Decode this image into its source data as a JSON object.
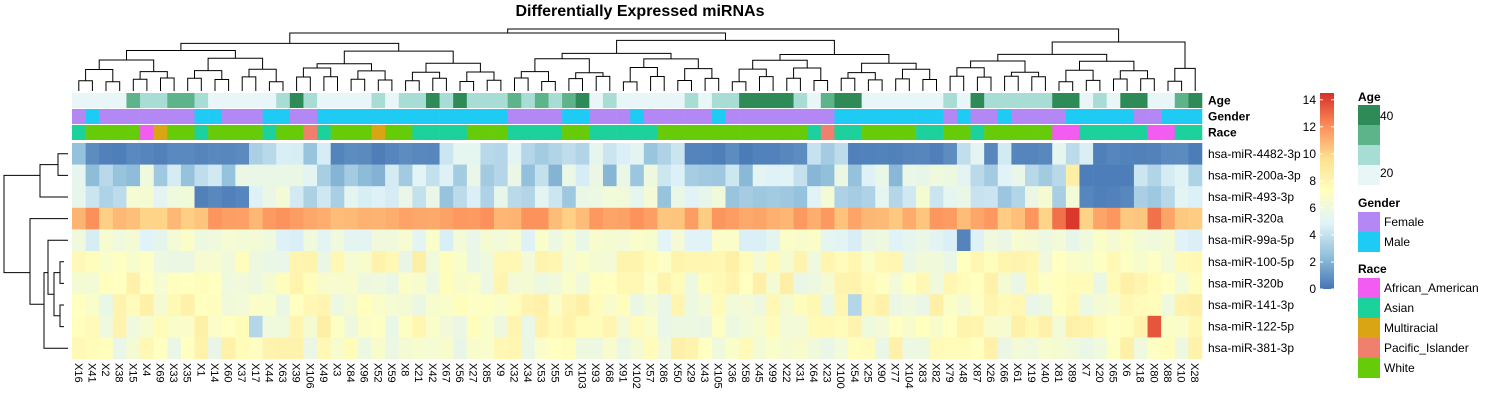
{
  "chart_data": {
    "type": "heatmap",
    "title": "Differentially Expressed miRNAs",
    "columns": [
      "X16",
      "X41",
      "X2",
      "X38",
      "X15",
      "X4",
      "X69",
      "X33",
      "X35",
      "X1",
      "X14",
      "X60",
      "X37",
      "X17",
      "X44",
      "X63",
      "X39",
      "X106",
      "X49",
      "X3",
      "X84",
      "X96",
      "X52",
      "X59",
      "X8",
      "X21",
      "X42",
      "X67",
      "X56",
      "X27",
      "X85",
      "X9",
      "X32",
      "X34",
      "X53",
      "X55",
      "X5",
      "X103",
      "X93",
      "X68",
      "X91",
      "X102",
      "X57",
      "X86",
      "X50",
      "X29",
      "X43",
      "X105",
      "X36",
      "X58",
      "X45",
      "X99",
      "X22",
      "X31",
      "X64",
      "X23",
      "X100",
      "X54",
      "X25",
      "X90",
      "X77",
      "X104",
      "X83",
      "X82",
      "X79",
      "X48",
      "X87",
      "X26",
      "X66",
      "X61",
      "X19",
      "X40",
      "X81",
      "X89",
      "X7",
      "X20",
      "X65",
      "X6",
      "X18",
      "X80",
      "X88",
      "X10",
      "X28"
    ],
    "rows": [
      "hsa-miR-4482-3p",
      "hsa-miR-200a-3p",
      "hsa-miR-493-3p",
      "hsa-miR-320a",
      "hsa-miR-99a-5p",
      "hsa-miR-100-5p",
      "hsa-miR-320b",
      "hsa-miR-141-3p",
      "hsa-miR-122-5p",
      "hsa-miR-381-3p"
    ],
    "annotation_labels": [
      "Age",
      "Gender",
      "Race"
    ],
    "colorbar": {
      "ticks": [
        0,
        2,
        4,
        6,
        8,
        10,
        12,
        14
      ],
      "range": [
        0,
        14.5
      ],
      "stops": [
        "#4575B4",
        "#91BFDB",
        "#E0F3F8",
        "#FFFFBF",
        "#FEE090",
        "#FC8D59",
        "#D73027"
      ]
    },
    "legends": {
      "age": {
        "title": "Age",
        "ticks": [
          40,
          20
        ],
        "range": [
          15,
          45
        ],
        "colors": [
          "#2E8B57",
          "#5DB38A",
          "#A8DDD6",
          "#E8F6F8"
        ]
      },
      "gender": {
        "title": "Gender",
        "items": [
          {
            "label": "Female",
            "color": "#B388F5"
          },
          {
            "label": "Male",
            "color": "#1ECBF5"
          }
        ]
      },
      "race": {
        "title": "Race",
        "items": [
          {
            "label": "African_American",
            "color": "#F25CF0"
          },
          {
            "label": "Asian",
            "color": "#1DD19C"
          },
          {
            "label": "Multiracial",
            "color": "#D9A514"
          },
          {
            "label": "Pacific_Islander",
            "color": "#F07F6E"
          },
          {
            "label": "White",
            "color": "#66CC0A"
          }
        ]
      }
    },
    "grid": false,
    "legend_placement": "right"
  }
}
